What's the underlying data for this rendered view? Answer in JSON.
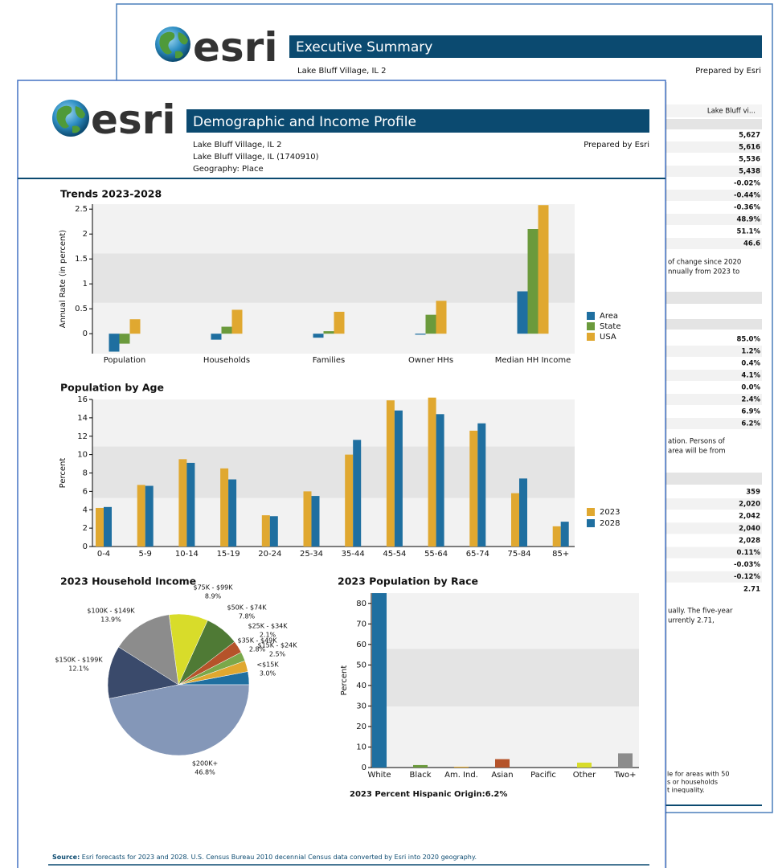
{
  "back_page": {
    "logo": "esri",
    "title": "Executive Summary",
    "location": "Lake Bluff Village, IL 2",
    "prepared_by": "Prepared by Esri",
    "column_header": "Lake Bluff vi...",
    "sections": [
      {
        "values": [
          "5,627",
          "5,616",
          "5,536",
          "5,438",
          "-0.02%",
          "-0.44%",
          "-0.36%",
          "48.9%",
          "51.1%",
          "46.6"
        ],
        "note": [
          "of change since 2020",
          "nnually from 2023 to"
        ]
      },
      {
        "values": [
          "85.0%",
          "1.2%",
          "0.4%",
          "4.1%",
          "0.0%",
          "2.4%",
          "6.9%",
          "6.2%"
        ],
        "note": [
          "ation.  Persons of",
          "area will be from"
        ]
      },
      {
        "values": [
          "359",
          "2,020",
          "2,042",
          "2,040",
          "2,028",
          "0.11%",
          "-0.03%",
          "-0.12%",
          "2.71"
        ],
        "note": [
          "ually.  The five-year",
          "urrently 2.71,"
        ]
      }
    ],
    "footnote": [
      "le for areas with 50",
      "s or households",
      "t inequality."
    ]
  },
  "front_page": {
    "logo": "esri",
    "title": "Demographic and Income Profile",
    "location_lines": [
      "Lake Bluff Village, IL 2",
      "Lake Bluff Village, IL (1740910)",
      "Geography: Place"
    ],
    "prepared_by": "Prepared by Esri",
    "source_label": "Source:",
    "source_text": " Esri forecasts for 2023 and 2028. U.S. Census Bureau 2010 decennial Census data converted by Esri into 2020 geography."
  },
  "chart_data": [
    {
      "type": "bar",
      "title": "Trends 2023-2028",
      "y_label": "Annual Rate (in percent)",
      "categories": [
        "Population",
        "Households",
        "Families",
        "Owner HHs",
        "Median HH Income"
      ],
      "series": [
        {
          "name": "Area",
          "color": "#1f6fa0",
          "values": [
            -0.36,
            -0.12,
            -0.08,
            -0.02,
            0.85
          ]
        },
        {
          "name": "State",
          "color": "#6b9a3c",
          "values": [
            -0.2,
            0.14,
            0.05,
            0.38,
            2.1
          ]
        },
        {
          "name": "USA",
          "color": "#e0a830",
          "values": [
            0.29,
            0.48,
            0.44,
            0.66,
            2.58
          ]
        }
      ],
      "ylim": [
        -0.4,
        2.6
      ],
      "yticks": [
        0,
        0.5,
        1,
        1.5,
        2,
        2.5
      ],
      "legend": "right"
    },
    {
      "type": "bar",
      "title": "Population by Age",
      "y_label": "Percent",
      "categories": [
        "0-4",
        "5-9",
        "10-14",
        "15-19",
        "20-24",
        "25-34",
        "35-44",
        "45-54",
        "55-64",
        "65-74",
        "75-84",
        "85+"
      ],
      "series": [
        {
          "name": "2023",
          "color": "#e0a830",
          "values": [
            4.2,
            6.7,
            9.5,
            8.5,
            3.4,
            6.0,
            10.0,
            15.9,
            16.2,
            12.6,
            5.8,
            2.2
          ]
        },
        {
          "name": "2028",
          "color": "#1f6fa0",
          "values": [
            4.3,
            6.6,
            9.1,
            7.3,
            3.3,
            5.5,
            11.6,
            14.8,
            14.4,
            13.4,
            7.4,
            2.7
          ]
        }
      ],
      "ylim": [
        0,
        16
      ],
      "yticks": [
        0,
        2,
        4,
        6,
        8,
        10,
        12,
        14,
        16
      ],
      "legend": "right"
    },
    {
      "type": "pie",
      "title": "2023 Household Income",
      "categories": [
        "<$15K",
        "$15K - $24K",
        "$25K - $34K",
        "$35K - $49K",
        "$50K - $74K",
        "$75K - $99K",
        "$100K - $149K",
        "$150K - $199K",
        "$200K+"
      ],
      "values": [
        3.0,
        2.5,
        2.1,
        2.8,
        7.8,
        8.9,
        13.9,
        12.1,
        46.8
      ],
      "value_labels": [
        "3.0%",
        "2.5%",
        "2.1%",
        "2.8%",
        "7.8%",
        "8.9%",
        "13.9%",
        "12.1%",
        "46.8%"
      ],
      "colors": [
        "#1f6fa0",
        "#e0a830",
        "#7aa84a",
        "#b5532a",
        "#4f7a35",
        "#d8dc2a",
        "#8c8c8c",
        "#3a4a6b",
        "#8497b8"
      ]
    },
    {
      "type": "bar",
      "title": "2023 Population by Race",
      "y_label": "Percent",
      "categories": [
        "White",
        "Black",
        "Am. Ind.",
        "Asian",
        "Pacific",
        "Other",
        "Two+"
      ],
      "values": [
        85.0,
        1.2,
        0.4,
        4.1,
        0.0,
        2.4,
        6.9
      ],
      "colors": [
        "#1f6fa0",
        "#6b9a3c",
        "#e0a830",
        "#b5532a",
        "#8c8c8c",
        "#d8dc2a",
        "#8c8c8c"
      ],
      "ylim": [
        0,
        85
      ],
      "yticks": [
        0,
        10,
        20,
        30,
        40,
        50,
        60,
        70,
        80
      ],
      "footnote": "2023 Percent Hispanic Origin:6.2%"
    }
  ]
}
